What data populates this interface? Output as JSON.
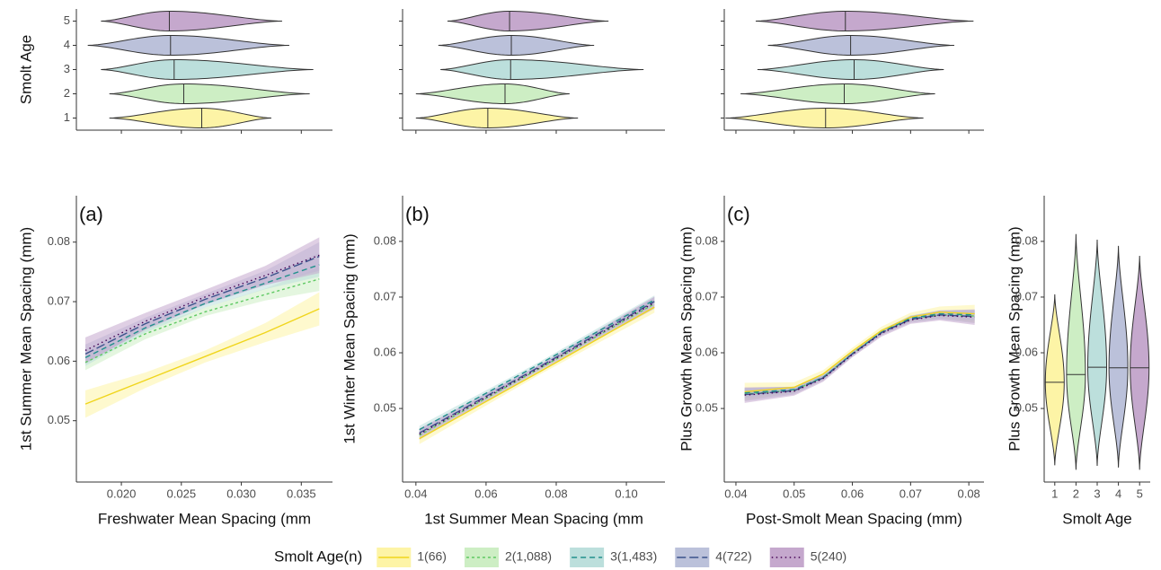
{
  "legend": {
    "title": "Smolt Age(n)",
    "entries": [
      {
        "name": "1(66)",
        "color": "#f0d51c",
        "fill": "#fdf4a6",
        "dash": "solid"
      },
      {
        "name": "2(1,088)",
        "color": "#5ec962",
        "fill": "#cdeec4",
        "dash": "dotted"
      },
      {
        "name": "3(1,483)",
        "color": "#21918c",
        "fill": "#bcdfdc",
        "dash": "dashed"
      },
      {
        "name": "4(722)",
        "color": "#3b528b",
        "fill": "#bbc1da",
        "dash": "longdash"
      },
      {
        "name": "5(240)",
        "color": "#440154",
        "fill": "#c5a8cd",
        "dash": "dotdash"
      }
    ]
  },
  "chart_data": [
    {
      "type": "violin",
      "orientation": "horizontal",
      "ylabel": "Smolt Age",
      "categories": [
        "1",
        "2",
        "3",
        "4",
        "5"
      ],
      "xlim": [
        0.01625,
        0.0376
      ],
      "xticks": [
        0.02,
        0.025,
        0.03,
        0.035
      ],
      "show_xtick_labels": false,
      "violins": [
        {
          "min": 0.019,
          "median": 0.0267,
          "max": 0.0325
        },
        {
          "min": 0.019,
          "median": 0.0252,
          "max": 0.0357
        },
        {
          "min": 0.0183,
          "median": 0.0244,
          "max": 0.036
        },
        {
          "min": 0.0172,
          "median": 0.0241,
          "max": 0.034
        },
        {
          "min": 0.0183,
          "median": 0.024,
          "max": 0.0334
        }
      ]
    },
    {
      "type": "violin",
      "orientation": "horizontal",
      "xlim": [
        0.0362,
        0.111
      ],
      "xticks": [
        0.04,
        0.06,
        0.08,
        0.1
      ],
      "show_xtick_labels": false,
      "violins": [
        {
          "min": 0.04,
          "median": 0.0605,
          "max": 0.0862
        },
        {
          "min": 0.04,
          "median": 0.0654,
          "max": 0.0838
        },
        {
          "min": 0.047,
          "median": 0.067,
          "max": 0.1049
        },
        {
          "min": 0.0464,
          "median": 0.0672,
          "max": 0.0908
        },
        {
          "min": 0.049,
          "median": 0.0667,
          "max": 0.0949
        }
      ]
    },
    {
      "type": "violin",
      "orientation": "horizontal",
      "xlim": [
        0.038,
        0.0826
      ],
      "xticks": [
        0.04,
        0.05,
        0.06,
        0.07,
        0.08
      ],
      "show_xtick_labels": false,
      "violins": [
        {
          "min": 0.0382,
          "median": 0.0554,
          "max": 0.0722
        },
        {
          "min": 0.0408,
          "median": 0.0586,
          "max": 0.0742
        },
        {
          "min": 0.0437,
          "median": 0.0603,
          "max": 0.0757
        },
        {
          "min": 0.0455,
          "median": 0.0597,
          "max": 0.0775
        },
        {
          "min": 0.0434,
          "median": 0.0588,
          "max": 0.0808
        }
      ]
    },
    {
      "type": "line",
      "panel_label": "(a)",
      "xlabel": "Freshwater Mean Spacing (mm",
      "ylabel": "1st Summer Mean Spacing (mm)",
      "xlim": [
        0.01625,
        0.0376
      ],
      "ylim": [
        0.0397,
        0.0878
      ],
      "xticks": [
        {
          "value": 0.02,
          "label": "0.020"
        },
        0.025,
        {
          "value": 0.03,
          "label": "0.030"
        },
        0.035
      ],
      "yticks": [
        0.05,
        0.06,
        0.07,
        0.08
      ],
      "x": [
        0.017,
        0.022,
        0.027,
        0.032,
        0.0365
      ],
      "series": [
        {
          "values": [
            0.0528,
            0.0568,
            0.0608,
            0.0648,
            0.0688
          ],
          "ci": [
            0.0023,
            0.0013,
            0.001,
            0.0016,
            0.0028
          ]
        },
        {
          "values": [
            0.0598,
            0.0646,
            0.0683,
            0.0712,
            0.0738
          ],
          "ci": [
            0.0013,
            0.0009,
            0.0007,
            0.001,
            0.002
          ]
        },
        {
          "values": [
            0.0606,
            0.0656,
            0.0697,
            0.0731,
            0.0762
          ],
          "ci": [
            0.0014,
            0.0008,
            0.0007,
            0.001,
            0.002
          ]
        },
        {
          "values": [
            0.0612,
            0.0663,
            0.0704,
            0.074,
            0.0776
          ],
          "ci": [
            0.0016,
            0.001,
            0.0009,
            0.0012,
            0.0024
          ]
        },
        {
          "values": [
            0.0618,
            0.0667,
            0.0708,
            0.0744,
            0.0778
          ],
          "ci": [
            0.0022,
            0.0014,
            0.0012,
            0.0016,
            0.003
          ]
        }
      ]
    },
    {
      "type": "line",
      "panel_label": "(b)",
      "xlabel": "1st Summer Mean Spacing (mm",
      "ylabel": "1st Winter Mean Spacing (mm)",
      "xlim": [
        0.0362,
        0.111
      ],
      "ylim": [
        0.0368,
        0.0882
      ],
      "xticks": [
        0.04,
        0.06,
        0.08,
        {
          "value": 0.1,
          "label": "0.10"
        }
      ],
      "yticks": [
        0.05,
        0.06,
        0.07,
        0.08
      ],
      "x": [
        0.041,
        0.075,
        0.108
      ],
      "series": [
        {
          "values": [
            0.0446,
            0.0565,
            0.0682
          ],
          "ci": [
            0.001,
            0.0005,
            0.001
          ]
        },
        {
          "values": [
            0.0452,
            0.0571,
            0.0688
          ],
          "ci": [
            0.0007,
            0.0004,
            0.0008
          ]
        },
        {
          "values": [
            0.0462,
            0.0579,
            0.0695
          ],
          "ci": [
            0.0007,
            0.0004,
            0.0008
          ]
        },
        {
          "values": [
            0.0456,
            0.0574,
            0.0692
          ],
          "ci": [
            0.0007,
            0.0004,
            0.0008
          ]
        },
        {
          "values": [
            0.0454,
            0.0572,
            0.069
          ],
          "ci": [
            0.001,
            0.0005,
            0.0011
          ]
        }
      ]
    },
    {
      "type": "line",
      "panel_label": "(c)",
      "xlabel": "Post-Smolt Mean Spacing (mm)",
      "ylabel": "Plus Growth Mean Spacing (mm)",
      "xlim": [
        0.038,
        0.0826
      ],
      "ylim": [
        0.0368,
        0.0882
      ],
      "xticks": [
        0.04,
        0.05,
        0.06,
        0.07,
        0.08
      ],
      "yticks": [
        0.05,
        0.06,
        0.07,
        0.08
      ],
      "x": [
        0.0415,
        0.05,
        0.055,
        0.06,
        0.065,
        0.07,
        0.075,
        0.081
      ],
      "series": [
        {
          "values": [
            0.053,
            0.0538,
            0.0562,
            0.0603,
            0.064,
            0.0664,
            0.0673,
            0.067
          ],
          "ci": [
            0.0016,
            0.0009,
            0.0007,
            0.0006,
            0.0007,
            0.0008,
            0.001,
            0.0016
          ]
        },
        {
          "values": [
            0.0526,
            0.0533,
            0.0556,
            0.0599,
            0.0637,
            0.0661,
            0.0668,
            0.0666
          ],
          "ci": [
            0.001,
            0.0006,
            0.0005,
            0.0004,
            0.0005,
            0.0005,
            0.0007,
            0.001
          ]
        },
        {
          "values": [
            0.0528,
            0.0534,
            0.0556,
            0.0598,
            0.0637,
            0.0662,
            0.067,
            0.0668
          ],
          "ci": [
            0.0009,
            0.0005,
            0.0004,
            0.0004,
            0.0004,
            0.0005,
            0.0006,
            0.0009
          ]
        },
        {
          "values": [
            0.0525,
            0.0532,
            0.0555,
            0.0598,
            0.0636,
            0.066,
            0.0668,
            0.0665
          ],
          "ci": [
            0.0012,
            0.0007,
            0.0005,
            0.0005,
            0.0005,
            0.0006,
            0.0008,
            0.0012
          ]
        },
        {
          "values": [
            0.0524,
            0.0531,
            0.0554,
            0.0597,
            0.0635,
            0.0659,
            0.0667,
            0.0664
          ],
          "ci": [
            0.0014,
            0.0008,
            0.0006,
            0.0005,
            0.0006,
            0.0007,
            0.0009,
            0.0014
          ]
        }
      ]
    },
    {
      "type": "violin",
      "orientation": "vertical",
      "xlabel": "Smolt Age",
      "ylabel": "Plus Growth Mean Spacing (mm)",
      "categories": [
        "1",
        "2",
        "3",
        "4",
        "5"
      ],
      "ylim": [
        0.0368,
        0.0882
      ],
      "yticks": [
        0.05,
        0.06,
        0.07,
        0.08
      ],
      "violins": [
        {
          "min": 0.0398,
          "median": 0.0547,
          "max": 0.0705
        },
        {
          "min": 0.039,
          "median": 0.0561,
          "max": 0.0813
        },
        {
          "min": 0.0397,
          "median": 0.0574,
          "max": 0.0803
        },
        {
          "min": 0.0394,
          "median": 0.0573,
          "max": 0.0792
        },
        {
          "min": 0.039,
          "median": 0.0573,
          "max": 0.0774
        }
      ]
    }
  ]
}
